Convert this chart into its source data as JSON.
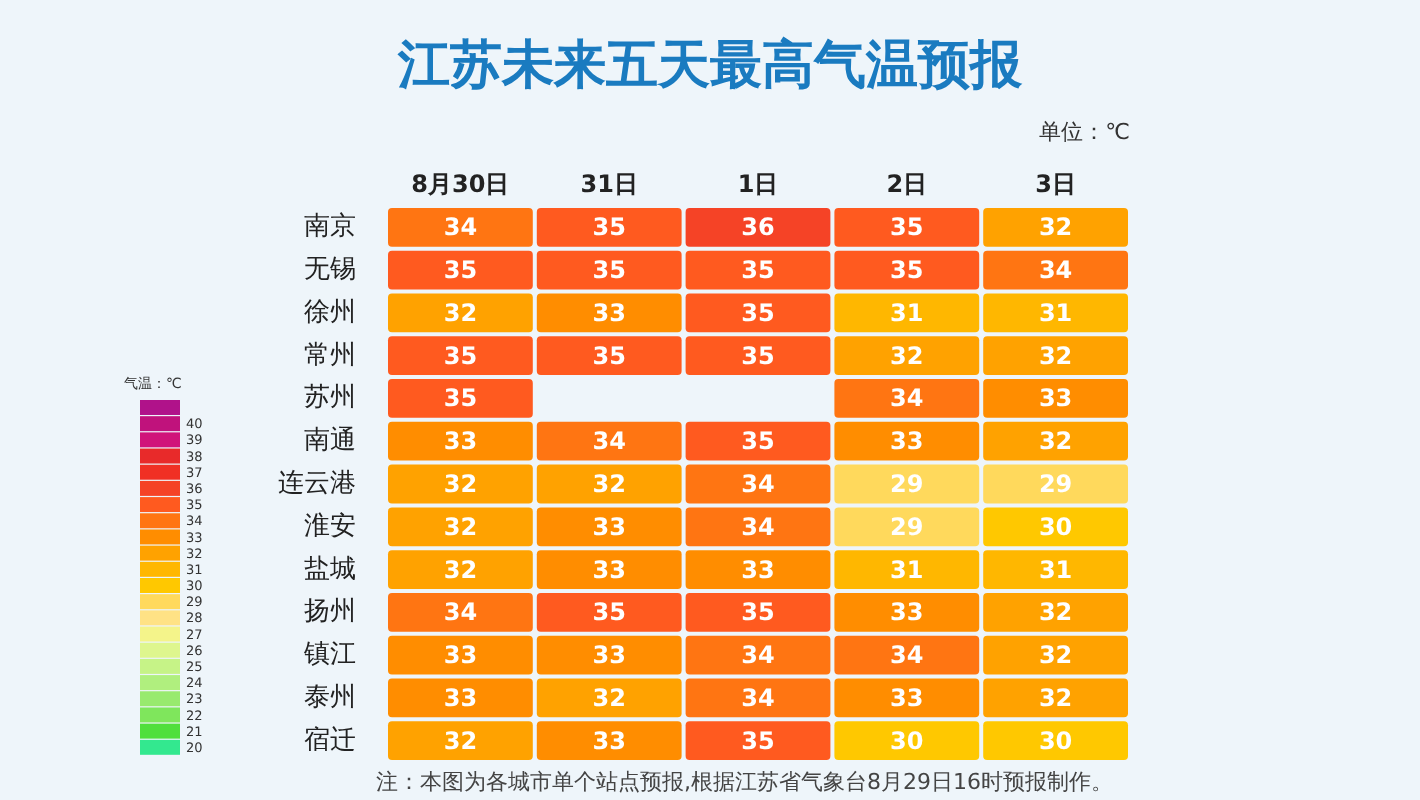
{
  "chart_data": {
    "type": "heatmap",
    "title": "江苏未来五天最高气温预报",
    "clabel": "气温：℃",
    "annotations": [
      "单位：℃",
      "注：本图为各城市单个站点预报,根据江苏省气象台8月29日16时预报制作。"
    ],
    "categories": [
      "8月30日",
      "31日",
      "1日",
      "2日",
      "3日"
    ],
    "y_categories": [
      "南京",
      "无锡",
      "徐州",
      "常州",
      "苏州",
      "南通",
      "连云港",
      "淮安",
      "盐城",
      "扬州",
      "镇江",
      "泰州",
      "宿迁"
    ],
    "cells": [
      [
        34,
        35,
        36,
        35,
        32
      ],
      [
        35,
        35,
        35,
        35,
        34
      ],
      [
        32,
        33,
        35,
        31,
        31
      ],
      [
        35,
        35,
        35,
        32,
        32
      ],
      [
        35,
        null,
        null,
        34,
        33
      ],
      [
        33,
        34,
        35,
        33,
        32
      ],
      [
        32,
        32,
        34,
        29,
        29
      ],
      [
        32,
        33,
        34,
        29,
        30
      ],
      [
        32,
        33,
        33,
        31,
        31
      ],
      [
        34,
        35,
        35,
        33,
        32
      ],
      [
        33,
        33,
        34,
        34,
        32
      ],
      [
        33,
        32,
        34,
        33,
        32
      ],
      [
        32,
        33,
        35,
        30,
        30
      ]
    ],
    "data_labels": true,
    "clim": [
      19.5,
      41.5
    ],
    "cticks": [
      20,
      21,
      22,
      23,
      24,
      25,
      26,
      27,
      28,
      29,
      30,
      31,
      32,
      33,
      34,
      35,
      36,
      37,
      38,
      39,
      40
    ]
  }
}
